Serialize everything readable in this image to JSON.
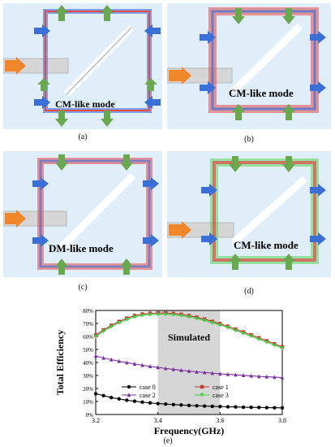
{
  "panels": [
    {
      "id": "a",
      "caption": "(a)",
      "label": "CM-like mode"
    },
    {
      "id": "b",
      "caption": "(b)",
      "label": "CM-like mode"
    },
    {
      "id": "c",
      "caption": "(c)",
      "label": "DM-like mode"
    },
    {
      "id": "d",
      "caption": "(d)",
      "label": "CM-like mode"
    }
  ],
  "figure_e_caption": "(e)",
  "colors": {
    "panel_bg": "#dfeef8",
    "feed_arrow": "#f0862a",
    "up_down_arrow": "#6aa84f",
    "side_arrow": "#3a6fd8",
    "highlight_band": "#d6d6d6"
  },
  "chart_data": {
    "type": "line",
    "xlabel": "Frequency(GHz)",
    "ylabel": "Total Efficiency",
    "annotation": "Simulated",
    "highlight_range": [
      3.4,
      3.6
    ],
    "xlim": [
      3.2,
      3.8
    ],
    "ylim": [
      0,
      80
    ],
    "xticks": [
      "3.2",
      "3.4",
      "3.6",
      "3.8"
    ],
    "yticks": [
      "0%",
      "10%",
      "20%",
      "30%",
      "40%",
      "50%",
      "60%",
      "70%",
      "80%"
    ],
    "x": [
      3.2,
      3.225,
      3.25,
      3.275,
      3.3,
      3.325,
      3.35,
      3.375,
      3.4,
      3.425,
      3.45,
      3.475,
      3.5,
      3.525,
      3.55,
      3.575,
      3.6,
      3.625,
      3.65,
      3.675,
      3.7,
      3.725,
      3.75,
      3.775,
      3.8
    ],
    "series": [
      {
        "name": "case 0",
        "color": "#000000",
        "marker": "circle",
        "values": [
          16,
          14.5,
          13,
          12,
          11,
          10.2,
          9.5,
          8.9,
          8.4,
          8.0,
          7.6,
          7.3,
          7.0,
          6.7,
          6.5,
          6.3,
          6.1,
          5.9,
          5.8,
          5.6,
          5.5,
          5.4,
          5.3,
          5.2,
          5.1
        ]
      },
      {
        "name": "case 1",
        "color": "#c0392b",
        "marker": "square",
        "values": [
          61,
          65,
          68.5,
          71.5,
          74,
          76,
          77.2,
          77.8,
          78,
          78,
          77.6,
          77,
          76,
          74.8,
          73.3,
          71.6,
          69.8,
          67.8,
          65.6,
          63.4,
          61.2,
          58.9,
          56.6,
          54.3,
          52
        ]
      },
      {
        "name": "case 2",
        "color": "#7b2e9e",
        "marker": "triangle",
        "values": [
          45,
          43.5,
          42.2,
          41,
          39.9,
          38.9,
          37.9,
          37,
          36.2,
          35.4,
          34.7,
          34,
          33.4,
          32.8,
          32.3,
          31.8,
          31.3,
          30.9,
          30.5,
          30.1,
          29.7,
          29.3,
          29,
          28.7,
          28.4
        ]
      },
      {
        "name": "case 3",
        "color": "#3ecf3e",
        "marker": "triangle-down",
        "values": [
          60,
          64,
          67.5,
          70.5,
          73,
          75,
          76.2,
          76.8,
          77,
          77,
          76.6,
          76,
          75,
          73.8,
          72.3,
          70.6,
          68.8,
          66.8,
          64.6,
          62.4,
          60.2,
          57.9,
          55.6,
          53.3,
          51
        ]
      }
    ]
  }
}
